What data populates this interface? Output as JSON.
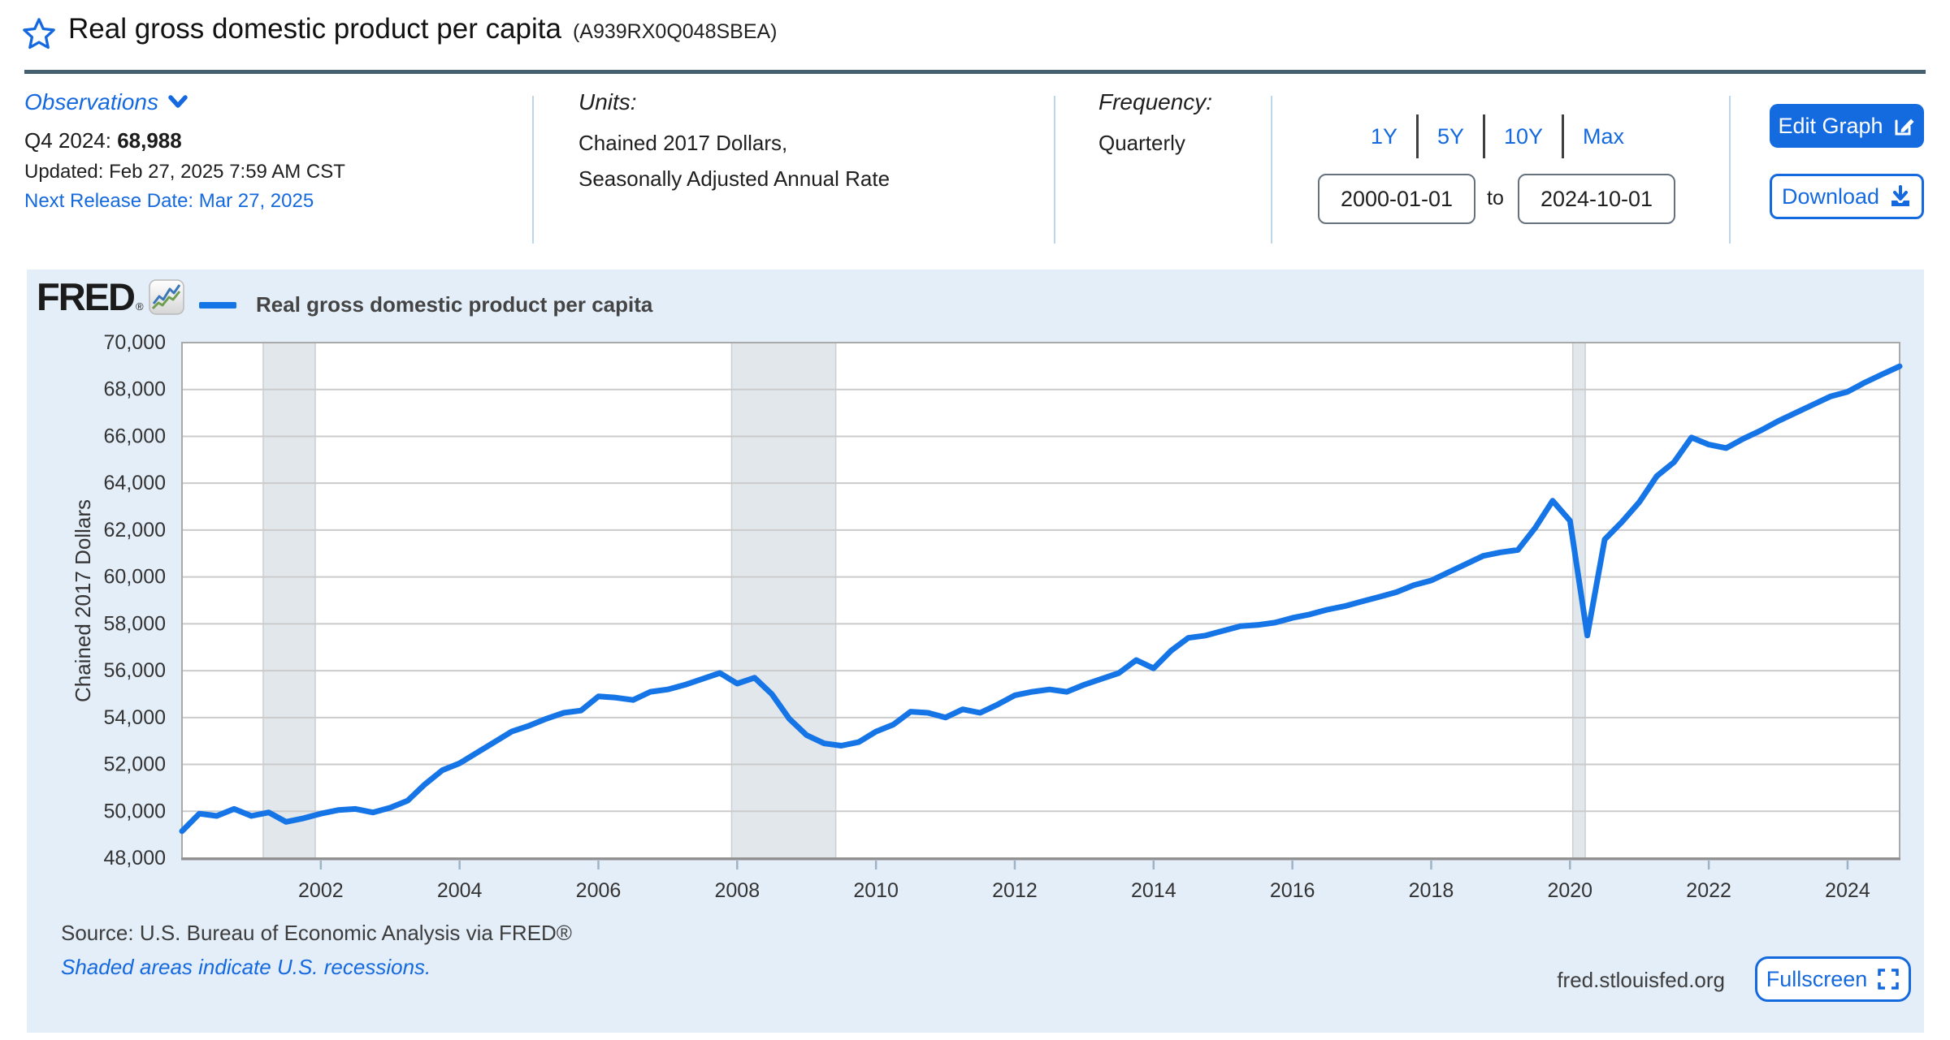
{
  "header": {
    "title": "Real gross domestic product per capita",
    "series_id": "(A939RX0Q048SBEA)"
  },
  "info": {
    "observations_label": "Observations",
    "latest_obs_label": "Q4 2024: ",
    "latest_obs_value": "68,988",
    "updated": "Updated: Feb 27, 2025 7:59 AM CST",
    "next_release": "Next Release Date: Mar 27, 2025",
    "units_label": "Units:",
    "units_line1": "Chained 2017 Dollars,",
    "units_line2": "Seasonally Adjusted Annual Rate",
    "frequency_label": "Frequency:",
    "frequency_value": "Quarterly"
  },
  "controls": {
    "presets": [
      "1Y",
      "5Y",
      "10Y",
      "Max"
    ],
    "date_from": "2000-01-01",
    "to_label": "to",
    "date_to": "2024-10-01",
    "edit_graph_label": "Edit Graph",
    "download_label": "Download"
  },
  "chart": {
    "brand": "FRED",
    "brand_reg": "®",
    "legend_label": "Real gross domestic product per capita",
    "y_axis_title": "Chained 2017 Dollars",
    "footer_source": "Source: U.S. Bureau of Economic Analysis via FRED®",
    "footer_note": "Shaded areas indicate U.S. recessions.",
    "footer_site": "fred.stlouisfed.org",
    "fullscreen_label": "Fullscreen"
  },
  "colors": {
    "accent_blue": "#1569df",
    "line_blue": "#1574e6",
    "panel_bg": "#e4eef9",
    "recession_fill": "#e2e7eb",
    "recession_edge": "#c9cfd5",
    "header_divider": "#44606f"
  },
  "chart_data": {
    "type": "line",
    "title": "Real gross domestic product per capita",
    "xlabel": "",
    "ylabel": "Chained 2017 Dollars",
    "legend": [
      "Real gross domestic product per capita"
    ],
    "frequency": "Quarterly",
    "x_start_year": 2000,
    "x_interval_years": 0.25,
    "xlim": [
      2000,
      2024.75
    ],
    "ylim": [
      48000,
      70000
    ],
    "grid": true,
    "y_ticks": [
      48000,
      50000,
      52000,
      54000,
      56000,
      58000,
      60000,
      62000,
      64000,
      66000,
      68000,
      70000
    ],
    "x_tick_years": [
      2002,
      2004,
      2006,
      2008,
      2010,
      2012,
      2014,
      2016,
      2018,
      2020,
      2022,
      2024
    ],
    "recessions": [
      {
        "start": 2001.17,
        "end": 2001.92
      },
      {
        "start": 2007.92,
        "end": 2009.42
      },
      {
        "start": 2020.04,
        "end": 2020.22
      }
    ],
    "values": [
      49150,
      49900,
      49800,
      50100,
      49800,
      49950,
      49550,
      49700,
      49900,
      50050,
      50100,
      49950,
      50150,
      50450,
      51150,
      51750,
      52050,
      52500,
      52950,
      53400,
      53650,
      53950,
      54200,
      54300,
      54900,
      54850,
      54750,
      55100,
      55200,
      55400,
      55650,
      55900,
      55450,
      55700,
      55000,
      53950,
      53250,
      52900,
      52800,
      52950,
      53400,
      53700,
      54250,
      54200,
      54000,
      54350,
      54200,
      54550,
      54950,
      55100,
      55200,
      55100,
      55400,
      55650,
      55900,
      56450,
      56100,
      56850,
      57400,
      57500,
      57700,
      57900,
      57950,
      58050,
      58250,
      58400,
      58600,
      58750,
      58950,
      59150,
      59350,
      59650,
      59850,
      60200,
      60550,
      60900,
      61050,
      61150,
      62100,
      63250,
      62400,
      57500,
      61600,
      62350,
      63200,
      64300,
      64900,
      65950,
      65650,
      65500,
      65900,
      66250,
      66650,
      67000,
      67350,
      67700,
      67900,
      68300,
      68650,
      68988
    ]
  }
}
